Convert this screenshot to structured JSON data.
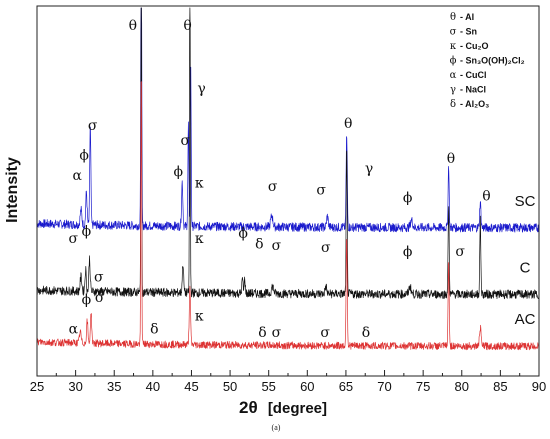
{
  "chart_data": {
    "type": "line",
    "title": "",
    "caption": "(a)",
    "xlabel_symbol": "2θ",
    "xlabel_unit": "[degree]",
    "ylabel": "Intensity",
    "xlim": [
      25,
      90
    ],
    "x_ticks": [
      "25",
      "30",
      "35",
      "40",
      "45",
      "50",
      "55",
      "60",
      "65",
      "70",
      "75",
      "80",
      "85",
      "90"
    ],
    "y_ticks_shown": false,
    "grid": false,
    "legend_position": "top-right",
    "legend": [
      {
        "symbol": "θ",
        "label": "- Al"
      },
      {
        "symbol": "σ",
        "label": "- Sn"
      },
      {
        "symbol": "κ",
        "label": "- Cu₂O"
      },
      {
        "symbol": "ϕ",
        "label": "- Sn₃O(OH)₂Cl₂"
      },
      {
        "symbol": "α",
        "label": "- CuCl"
      },
      {
        "symbol": "γ",
        "label": "- NaCl"
      },
      {
        "symbol": "δ",
        "label": "- Al₂O₃"
      }
    ],
    "series": [
      {
        "name": "SC",
        "color": "#1a1acc",
        "baseline": 0.4,
        "noise": 0.012,
        "peaks": [
          {
            "x": 30.7,
            "h": 0.04,
            "w": 0.15
          },
          {
            "x": 31.4,
            "h": 0.09,
            "w": 0.12
          },
          {
            "x": 31.9,
            "h": 0.27,
            "w": 0.1
          },
          {
            "x": 38.5,
            "h": 0.94,
            "w": 0.08
          },
          {
            "x": 43.8,
            "h": 0.12,
            "w": 0.12
          },
          {
            "x": 44.6,
            "h": 0.28,
            "w": 0.09
          },
          {
            "x": 44.9,
            "h": 0.45,
            "w": 0.08
          },
          {
            "x": 55.4,
            "h": 0.03,
            "w": 0.2
          },
          {
            "x": 62.6,
            "h": 0.03,
            "w": 0.15
          },
          {
            "x": 65.1,
            "h": 0.25,
            "w": 0.1
          },
          {
            "x": 73.5,
            "h": 0.02,
            "w": 0.2
          },
          {
            "x": 78.3,
            "h": 0.17,
            "w": 0.1
          },
          {
            "x": 82.4,
            "h": 0.07,
            "w": 0.12
          }
        ]
      },
      {
        "name": "C",
        "color": "#111111",
        "baseline": 0.22,
        "noise": 0.012,
        "peaks": [
          {
            "x": 30.7,
            "h": 0.04,
            "w": 0.15
          },
          {
            "x": 31.3,
            "h": 0.06,
            "w": 0.12
          },
          {
            "x": 31.8,
            "h": 0.09,
            "w": 0.12
          },
          {
            "x": 38.5,
            "h": 0.98,
            "w": 0.07
          },
          {
            "x": 43.9,
            "h": 0.08,
            "w": 0.12
          },
          {
            "x": 44.8,
            "h": 0.98,
            "w": 0.07
          },
          {
            "x": 51.6,
            "h": 0.04,
            "w": 0.1
          },
          {
            "x": 51.9,
            "h": 0.04,
            "w": 0.1
          },
          {
            "x": 55.5,
            "h": 0.02,
            "w": 0.2
          },
          {
            "x": 62.4,
            "h": 0.02,
            "w": 0.15
          },
          {
            "x": 65.1,
            "h": 0.4,
            "w": 0.09
          },
          {
            "x": 73.3,
            "h": 0.02,
            "w": 0.2
          },
          {
            "x": 78.3,
            "h": 0.24,
            "w": 0.1
          },
          {
            "x": 82.4,
            "h": 0.2,
            "w": 0.1
          }
        ]
      },
      {
        "name": "AC",
        "color": "#dd3333",
        "baseline": 0.08,
        "noise": 0.01,
        "peaks": [
          {
            "x": 30.6,
            "h": 0.03,
            "w": 0.15
          },
          {
            "x": 31.5,
            "h": 0.06,
            "w": 0.12
          },
          {
            "x": 32.0,
            "h": 0.08,
            "w": 0.12
          },
          {
            "x": 38.5,
            "h": 0.75,
            "w": 0.08
          },
          {
            "x": 44.8,
            "h": 0.15,
            "w": 0.12
          },
          {
            "x": 65.1,
            "h": 0.3,
            "w": 0.1
          },
          {
            "x": 78.3,
            "h": 0.23,
            "w": 0.1
          },
          {
            "x": 82.4,
            "h": 0.05,
            "w": 0.15
          }
        ]
      }
    ],
    "annotations": [
      {
        "text": "θ",
        "x": 37.4,
        "y": 0.935
      },
      {
        "text": "θ",
        "x": 44.5,
        "y": 0.935
      },
      {
        "text": "γ",
        "x": 46.3,
        "y": 0.765
      },
      {
        "text": "σ",
        "x": 32.2,
        "y": 0.665
      },
      {
        "text": "σ",
        "x": 44.2,
        "y": 0.625
      },
      {
        "text": "θ",
        "x": 65.3,
        "y": 0.67
      },
      {
        "text": "γ",
        "x": 68.0,
        "y": 0.548
      },
      {
        "text": "θ",
        "x": 78.6,
        "y": 0.576
      },
      {
        "text": "θ",
        "x": 83.2,
        "y": 0.475
      },
      {
        "text": "α",
        "x": 30.2,
        "y": 0.53
      },
      {
        "text": "ϕ",
        "x": 31.1,
        "y": 0.585
      },
      {
        "text": "ϕ",
        "x": 43.3,
        "y": 0.54
      },
      {
        "text": "κ",
        "x": 46.0,
        "y": 0.51
      },
      {
        "text": "σ",
        "x": 55.5,
        "y": 0.5
      },
      {
        "text": "σ",
        "x": 61.8,
        "y": 0.49
      },
      {
        "text": "ϕ",
        "x": 73.0,
        "y": 0.47
      },
      {
        "text": "σ",
        "x": 29.7,
        "y": 0.36
      },
      {
        "text": "ϕ",
        "x": 31.4,
        "y": 0.38
      },
      {
        "text": "σ",
        "x": 33.0,
        "y": 0.255
      },
      {
        "text": "κ",
        "x": 46.0,
        "y": 0.36
      },
      {
        "text": "ϕ",
        "x": 51.7,
        "y": 0.375
      },
      {
        "text": "δ",
        "x": 53.8,
        "y": 0.345
      },
      {
        "text": "σ",
        "x": 56.0,
        "y": 0.34
      },
      {
        "text": "σ",
        "x": 62.4,
        "y": 0.335
      },
      {
        "text": "ϕ",
        "x": 73.0,
        "y": 0.325
      },
      {
        "text": "σ",
        "x": 79.8,
        "y": 0.325
      },
      {
        "text": "α",
        "x": 29.7,
        "y": 0.115
      },
      {
        "text": "ϕ",
        "x": 31.4,
        "y": 0.195
      },
      {
        "text": "σ",
        "x": 33.1,
        "y": 0.2
      },
      {
        "text": "δ",
        "x": 40.2,
        "y": 0.115
      },
      {
        "text": "κ",
        "x": 46.0,
        "y": 0.15
      },
      {
        "text": "δ",
        "x": 54.2,
        "y": 0.105
      },
      {
        "text": "σ",
        "x": 56.0,
        "y": 0.105
      },
      {
        "text": "σ",
        "x": 62.3,
        "y": 0.105
      },
      {
        "text": "δ",
        "x": 67.6,
        "y": 0.105
      }
    ]
  }
}
